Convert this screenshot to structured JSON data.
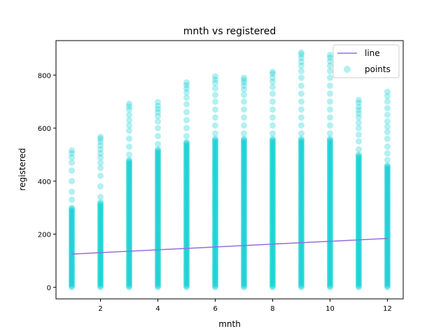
{
  "chart_data": {
    "type": "scatter",
    "title": "mnth vs registered",
    "xlabel": "mnth",
    "ylabel": "registered",
    "xlim": [
      0.45,
      12.55
    ],
    "ylim": [
      -44,
      930
    ],
    "xticks": [
      2,
      4,
      6,
      8,
      10,
      12
    ],
    "yticks": [
      0,
      200,
      400,
      600,
      800
    ],
    "grid": false,
    "legend_position": "top-right",
    "series": [
      {
        "name": "line",
        "kind": "line",
        "color": "#9370DB",
        "x": [
          1,
          12
        ],
        "y": [
          125,
          184
        ]
      },
      {
        "name": "points",
        "kind": "scatter",
        "color": "#00CED1",
        "x": [
          1,
          2,
          3,
          4,
          5,
          6,
          7,
          8,
          9,
          10,
          11,
          12
        ],
        "dense_max": [
          300,
          320,
          480,
          520,
          550,
          560,
          560,
          560,
          560,
          560,
          500,
          460
        ],
        "sparse_y": [
          [
            330,
            360,
            400,
            440,
            470,
            490,
            505,
            516
          ],
          [
            340,
            380,
            420,
            450,
            470,
            490,
            505,
            520,
            535,
            548,
            560,
            567
          ],
          [
            500,
            530,
            560,
            590,
            610,
            630,
            650,
            670,
            682,
            692
          ],
          [
            540,
            570,
            600,
            625,
            645,
            660,
            672,
            684,
            698
          ],
          [
            570,
            600,
            630,
            660,
            690,
            715,
            735,
            750,
            762,
            772
          ],
          [
            580,
            610,
            640,
            670,
            700,
            725,
            750,
            770,
            783,
            795
          ],
          [
            580,
            610,
            640,
            670,
            700,
            725,
            745,
            760,
            772,
            782,
            790
          ],
          [
            580,
            610,
            640,
            670,
            700,
            730,
            755,
            775,
            790,
            805,
            812
          ],
          [
            580,
            610,
            640,
            670,
            700,
            730,
            760,
            790,
            815,
            835,
            850,
            865,
            878,
            885
          ],
          [
            580,
            610,
            640,
            670,
            700,
            730,
            760,
            790,
            815,
            835,
            852,
            866,
            876
          ],
          [
            520,
            550,
            575,
            600,
            620,
            640,
            655,
            668,
            680,
            696,
            706
          ],
          [
            480,
            505,
            530,
            560,
            585,
            605,
            625,
            650,
            675,
            700,
            720,
            737
          ]
        ]
      }
    ]
  }
}
